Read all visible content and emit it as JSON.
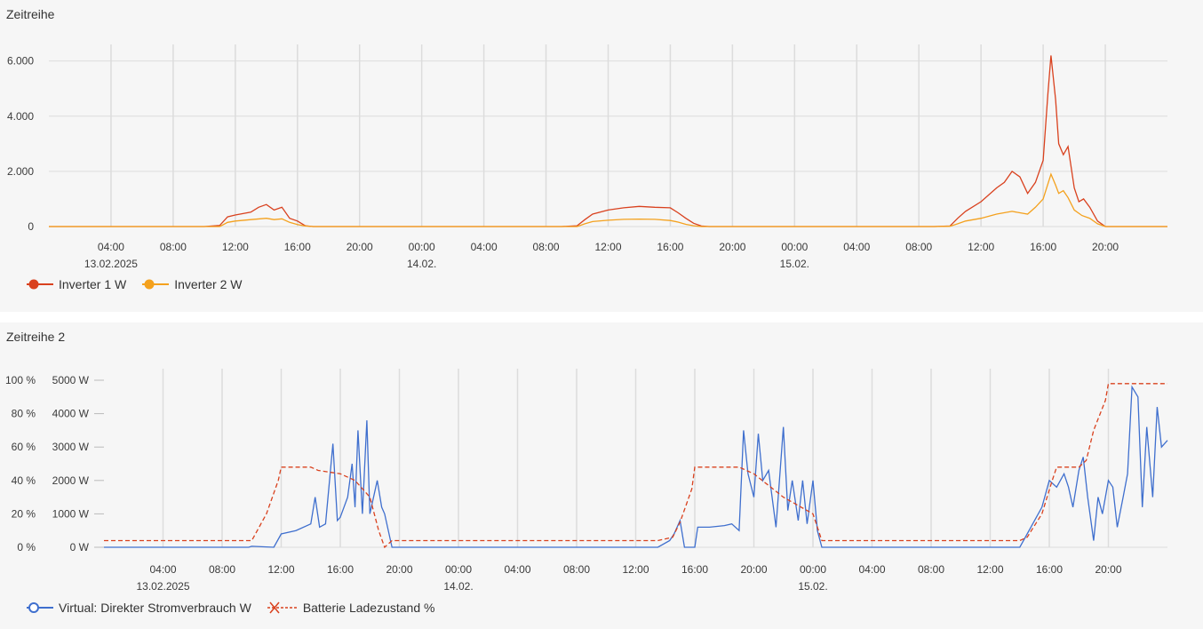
{
  "chart_data": [
    {
      "type": "line",
      "title": "Zeitreihe",
      "xlim_hours": [
        0,
        72
      ],
      "x_ticks": [
        {
          "label": "04:00",
          "sub": "13.02.2025"
        },
        {
          "label": "08:00",
          "sub": ""
        },
        {
          "label": "12:00",
          "sub": ""
        },
        {
          "label": "16:00",
          "sub": ""
        },
        {
          "label": "20:00",
          "sub": ""
        },
        {
          "label": "00:00",
          "sub": "14.02."
        },
        {
          "label": "04:00",
          "sub": ""
        },
        {
          "label": "08:00",
          "sub": ""
        },
        {
          "label": "12:00",
          "sub": ""
        },
        {
          "label": "16:00",
          "sub": ""
        },
        {
          "label": "20:00",
          "sub": ""
        },
        {
          "label": "00:00",
          "sub": "15.02."
        },
        {
          "label": "04:00",
          "sub": ""
        },
        {
          "label": "08:00",
          "sub": ""
        },
        {
          "label": "12:00",
          "sub": ""
        },
        {
          "label": "16:00",
          "sub": ""
        },
        {
          "label": "20:00",
          "sub": ""
        }
      ],
      "y_ticks": [
        "0",
        "2.000",
        "4.000",
        "6.000"
      ],
      "ylim": [
        0,
        6600
      ],
      "series": [
        {
          "name": "Inverter 1 W",
          "color": "#d9411e",
          "points": [
            [
              0,
              0
            ],
            [
              10,
              0
            ],
            [
              11,
              40
            ],
            [
              11.5,
              350
            ],
            [
              12,
              420
            ],
            [
              13,
              520
            ],
            [
              13.5,
              700
            ],
            [
              14,
              800
            ],
            [
              14.5,
              600
            ],
            [
              15,
              700
            ],
            [
              15.5,
              300
            ],
            [
              16,
              200
            ],
            [
              16.5,
              30
            ],
            [
              17,
              0
            ],
            [
              33,
              0
            ],
            [
              34,
              30
            ],
            [
              34.5,
              250
            ],
            [
              35,
              450
            ],
            [
              36,
              600
            ],
            [
              37,
              680
            ],
            [
              38,
              730
            ],
            [
              39,
              700
            ],
            [
              40,
              680
            ],
            [
              40.5,
              500
            ],
            [
              41,
              300
            ],
            [
              41.5,
              120
            ],
            [
              42,
              20
            ],
            [
              42.5,
              0
            ],
            [
              57,
              0
            ],
            [
              58,
              20
            ],
            [
              58.5,
              300
            ],
            [
              59,
              550
            ],
            [
              60,
              900
            ],
            [
              61,
              1400
            ],
            [
              61.5,
              1600
            ],
            [
              62,
              2000
            ],
            [
              62.5,
              1800
            ],
            [
              63,
              1200
            ],
            [
              63.5,
              1600
            ],
            [
              64,
              2400
            ],
            [
              64.3,
              4800
            ],
            [
              64.5,
              6200
            ],
            [
              64.8,
              4600
            ],
            [
              65,
              3000
            ],
            [
              65.3,
              2600
            ],
            [
              65.6,
              2900
            ],
            [
              66,
              1400
            ],
            [
              66.3,
              900
            ],
            [
              66.6,
              1000
            ],
            [
              67,
              700
            ],
            [
              67.5,
              200
            ],
            [
              68,
              0
            ],
            [
              72,
              0
            ]
          ]
        },
        {
          "name": "Inverter 2 W",
          "color": "#f4a11d",
          "points": [
            [
              0,
              0
            ],
            [
              11,
              0
            ],
            [
              11.5,
              150
            ],
            [
              12,
              200
            ],
            [
              13,
              250
            ],
            [
              14,
              300
            ],
            [
              14.5,
              250
            ],
            [
              15,
              280
            ],
            [
              15.5,
              150
            ],
            [
              16,
              70
            ],
            [
              16.5,
              20
            ],
            [
              17,
              0
            ],
            [
              34,
              0
            ],
            [
              34.5,
              100
            ],
            [
              35,
              180
            ],
            [
              36,
              230
            ],
            [
              37,
              260
            ],
            [
              38,
              270
            ],
            [
              39,
              260
            ],
            [
              40,
              220
            ],
            [
              40.5,
              160
            ],
            [
              41,
              80
            ],
            [
              41.5,
              30
            ],
            [
              42,
              0
            ],
            [
              57,
              0
            ],
            [
              58,
              10
            ],
            [
              58.5,
              100
            ],
            [
              59,
              200
            ],
            [
              60,
              300
            ],
            [
              61,
              450
            ],
            [
              62,
              550
            ],
            [
              62.5,
              500
            ],
            [
              63,
              450
            ],
            [
              63.5,
              700
            ],
            [
              64,
              1000
            ],
            [
              64.5,
              1900
            ],
            [
              64.8,
              1500
            ],
            [
              65,
              1200
            ],
            [
              65.3,
              1300
            ],
            [
              65.6,
              1050
            ],
            [
              66,
              600
            ],
            [
              66.5,
              400
            ],
            [
              67,
              300
            ],
            [
              67.5,
              100
            ],
            [
              68,
              0
            ],
            [
              72,
              0
            ]
          ]
        }
      ]
    },
    {
      "type": "line",
      "title": "Zeitreihe 2",
      "xlim_hours": [
        0,
        72
      ],
      "x_ticks": [
        {
          "label": "04:00",
          "sub": "13.02.2025"
        },
        {
          "label": "08:00",
          "sub": ""
        },
        {
          "label": "12:00",
          "sub": ""
        },
        {
          "label": "16:00",
          "sub": ""
        },
        {
          "label": "20:00",
          "sub": ""
        },
        {
          "label": "00:00",
          "sub": "14.02."
        },
        {
          "label": "04:00",
          "sub": ""
        },
        {
          "label": "08:00",
          "sub": ""
        },
        {
          "label": "12:00",
          "sub": ""
        },
        {
          "label": "16:00",
          "sub": ""
        },
        {
          "label": "20:00",
          "sub": ""
        },
        {
          "label": "00:00",
          "sub": "15.02."
        },
        {
          "label": "04:00",
          "sub": ""
        },
        {
          "label": "08:00",
          "sub": ""
        },
        {
          "label": "12:00",
          "sub": ""
        },
        {
          "label": "16:00",
          "sub": ""
        },
        {
          "label": "20:00",
          "sub": ""
        }
      ],
      "y_ticks_left": [
        "0 %",
        "20 %",
        "40 %",
        "60 %",
        "80 %",
        "100 %"
      ],
      "y_ticks_right": [
        "0 W",
        "1000 W",
        "2000 W",
        "3000 W",
        "4000 W",
        "5000 W"
      ],
      "ylim_left": [
        0,
        100
      ],
      "ylim_right": [
        0,
        5000
      ],
      "series": [
        {
          "name": "Virtual: Direkter Stromverbrauch W",
          "color": "#3f6fce",
          "axis": "right",
          "points": [
            [
              0,
              0
            ],
            [
              9.8,
              0
            ],
            [
              10,
              30
            ],
            [
              11.5,
              0
            ],
            [
              12,
              400
            ],
            [
              13,
              500
            ],
            [
              14,
              700
            ],
            [
              14.3,
              1500
            ],
            [
              14.6,
              600
            ],
            [
              15,
              700
            ],
            [
              15.5,
              3100
            ],
            [
              15.8,
              800
            ],
            [
              16,
              900
            ],
            [
              16.5,
              1500
            ],
            [
              16.8,
              2500
            ],
            [
              17,
              1200
            ],
            [
              17.2,
              3500
            ],
            [
              17.5,
              1000
            ],
            [
              17.8,
              3800
            ],
            [
              18,
              1000
            ],
            [
              18.5,
              2000
            ],
            [
              18.8,
              1200
            ],
            [
              19,
              1000
            ],
            [
              19.5,
              0
            ],
            [
              37.5,
              0
            ],
            [
              38.3,
              200
            ],
            [
              38.6,
              400
            ],
            [
              39,
              800
            ],
            [
              39.3,
              0
            ],
            [
              40,
              0
            ],
            [
              40.2,
              600
            ],
            [
              41,
              600
            ],
            [
              42,
              650
            ],
            [
              42.5,
              700
            ],
            [
              43,
              500
            ],
            [
              43.3,
              3500
            ],
            [
              43.6,
              2200
            ],
            [
              44,
              1500
            ],
            [
              44.3,
              3400
            ],
            [
              44.6,
              2000
            ],
            [
              45,
              2300
            ],
            [
              45.5,
              600
            ],
            [
              46,
              3600
            ],
            [
              46.3,
              1100
            ],
            [
              46.6,
              2000
            ],
            [
              47,
              800
            ],
            [
              47.3,
              2000
            ],
            [
              47.6,
              700
            ],
            [
              48,
              2000
            ],
            [
              48.3,
              500
            ],
            [
              48.6,
              0
            ],
            [
              62,
              0
            ],
            [
              62.5,
              400
            ],
            [
              63,
              800
            ],
            [
              63.5,
              1200
            ],
            [
              64,
              2000
            ],
            [
              64.5,
              1800
            ],
            [
              65,
              2200
            ],
            [
              65.3,
              1800
            ],
            [
              65.6,
              1200
            ],
            [
              66,
              2300
            ],
            [
              66.3,
              2700
            ],
            [
              66.6,
              1500
            ],
            [
              67,
              200
            ],
            [
              67.3,
              1500
            ],
            [
              67.6,
              1000
            ],
            [
              68,
              2000
            ],
            [
              68.3,
              1800
            ],
            [
              68.6,
              600
            ],
            [
              69,
              1500
            ],
            [
              69.3,
              2200
            ],
            [
              69.6,
              4800
            ],
            [
              70,
              4500
            ],
            [
              70.3,
              1200
            ],
            [
              70.6,
              3600
            ],
            [
              71,
              1500
            ],
            [
              71.3,
              4200
            ],
            [
              71.6,
              3000
            ],
            [
              72,
              3200
            ]
          ]
        },
        {
          "name": "Batterie Ladezustand %",
          "color": "#d9411e",
          "axis": "left",
          "points": [
            [
              0,
              4
            ],
            [
              10,
              4
            ],
            [
              11,
              20
            ],
            [
              11.8,
              40
            ],
            [
              12,
              48
            ],
            [
              14,
              48
            ],
            [
              14.5,
              46
            ],
            [
              16,
              44
            ],
            [
              17,
              40
            ],
            [
              18,
              30
            ],
            [
              18.6,
              10
            ],
            [
              19,
              0
            ],
            [
              19.5,
              4
            ],
            [
              37.5,
              4
            ],
            [
              38.5,
              6
            ],
            [
              39,
              15
            ],
            [
              39.8,
              35
            ],
            [
              40,
              48
            ],
            [
              42,
              48
            ],
            [
              43,
              48
            ],
            [
              44,
              44
            ],
            [
              46,
              30
            ],
            [
              48,
              20
            ],
            [
              48.6,
              4
            ],
            [
              62,
              4
            ],
            [
              62.5,
              6
            ],
            [
              63.5,
              20
            ],
            [
              64.2,
              40
            ],
            [
              64.5,
              48
            ],
            [
              66,
              48
            ],
            [
              66.5,
              52
            ],
            [
              67,
              70
            ],
            [
              67.8,
              88
            ],
            [
              68,
              98
            ],
            [
              72,
              98
            ]
          ]
        }
      ]
    }
  ]
}
